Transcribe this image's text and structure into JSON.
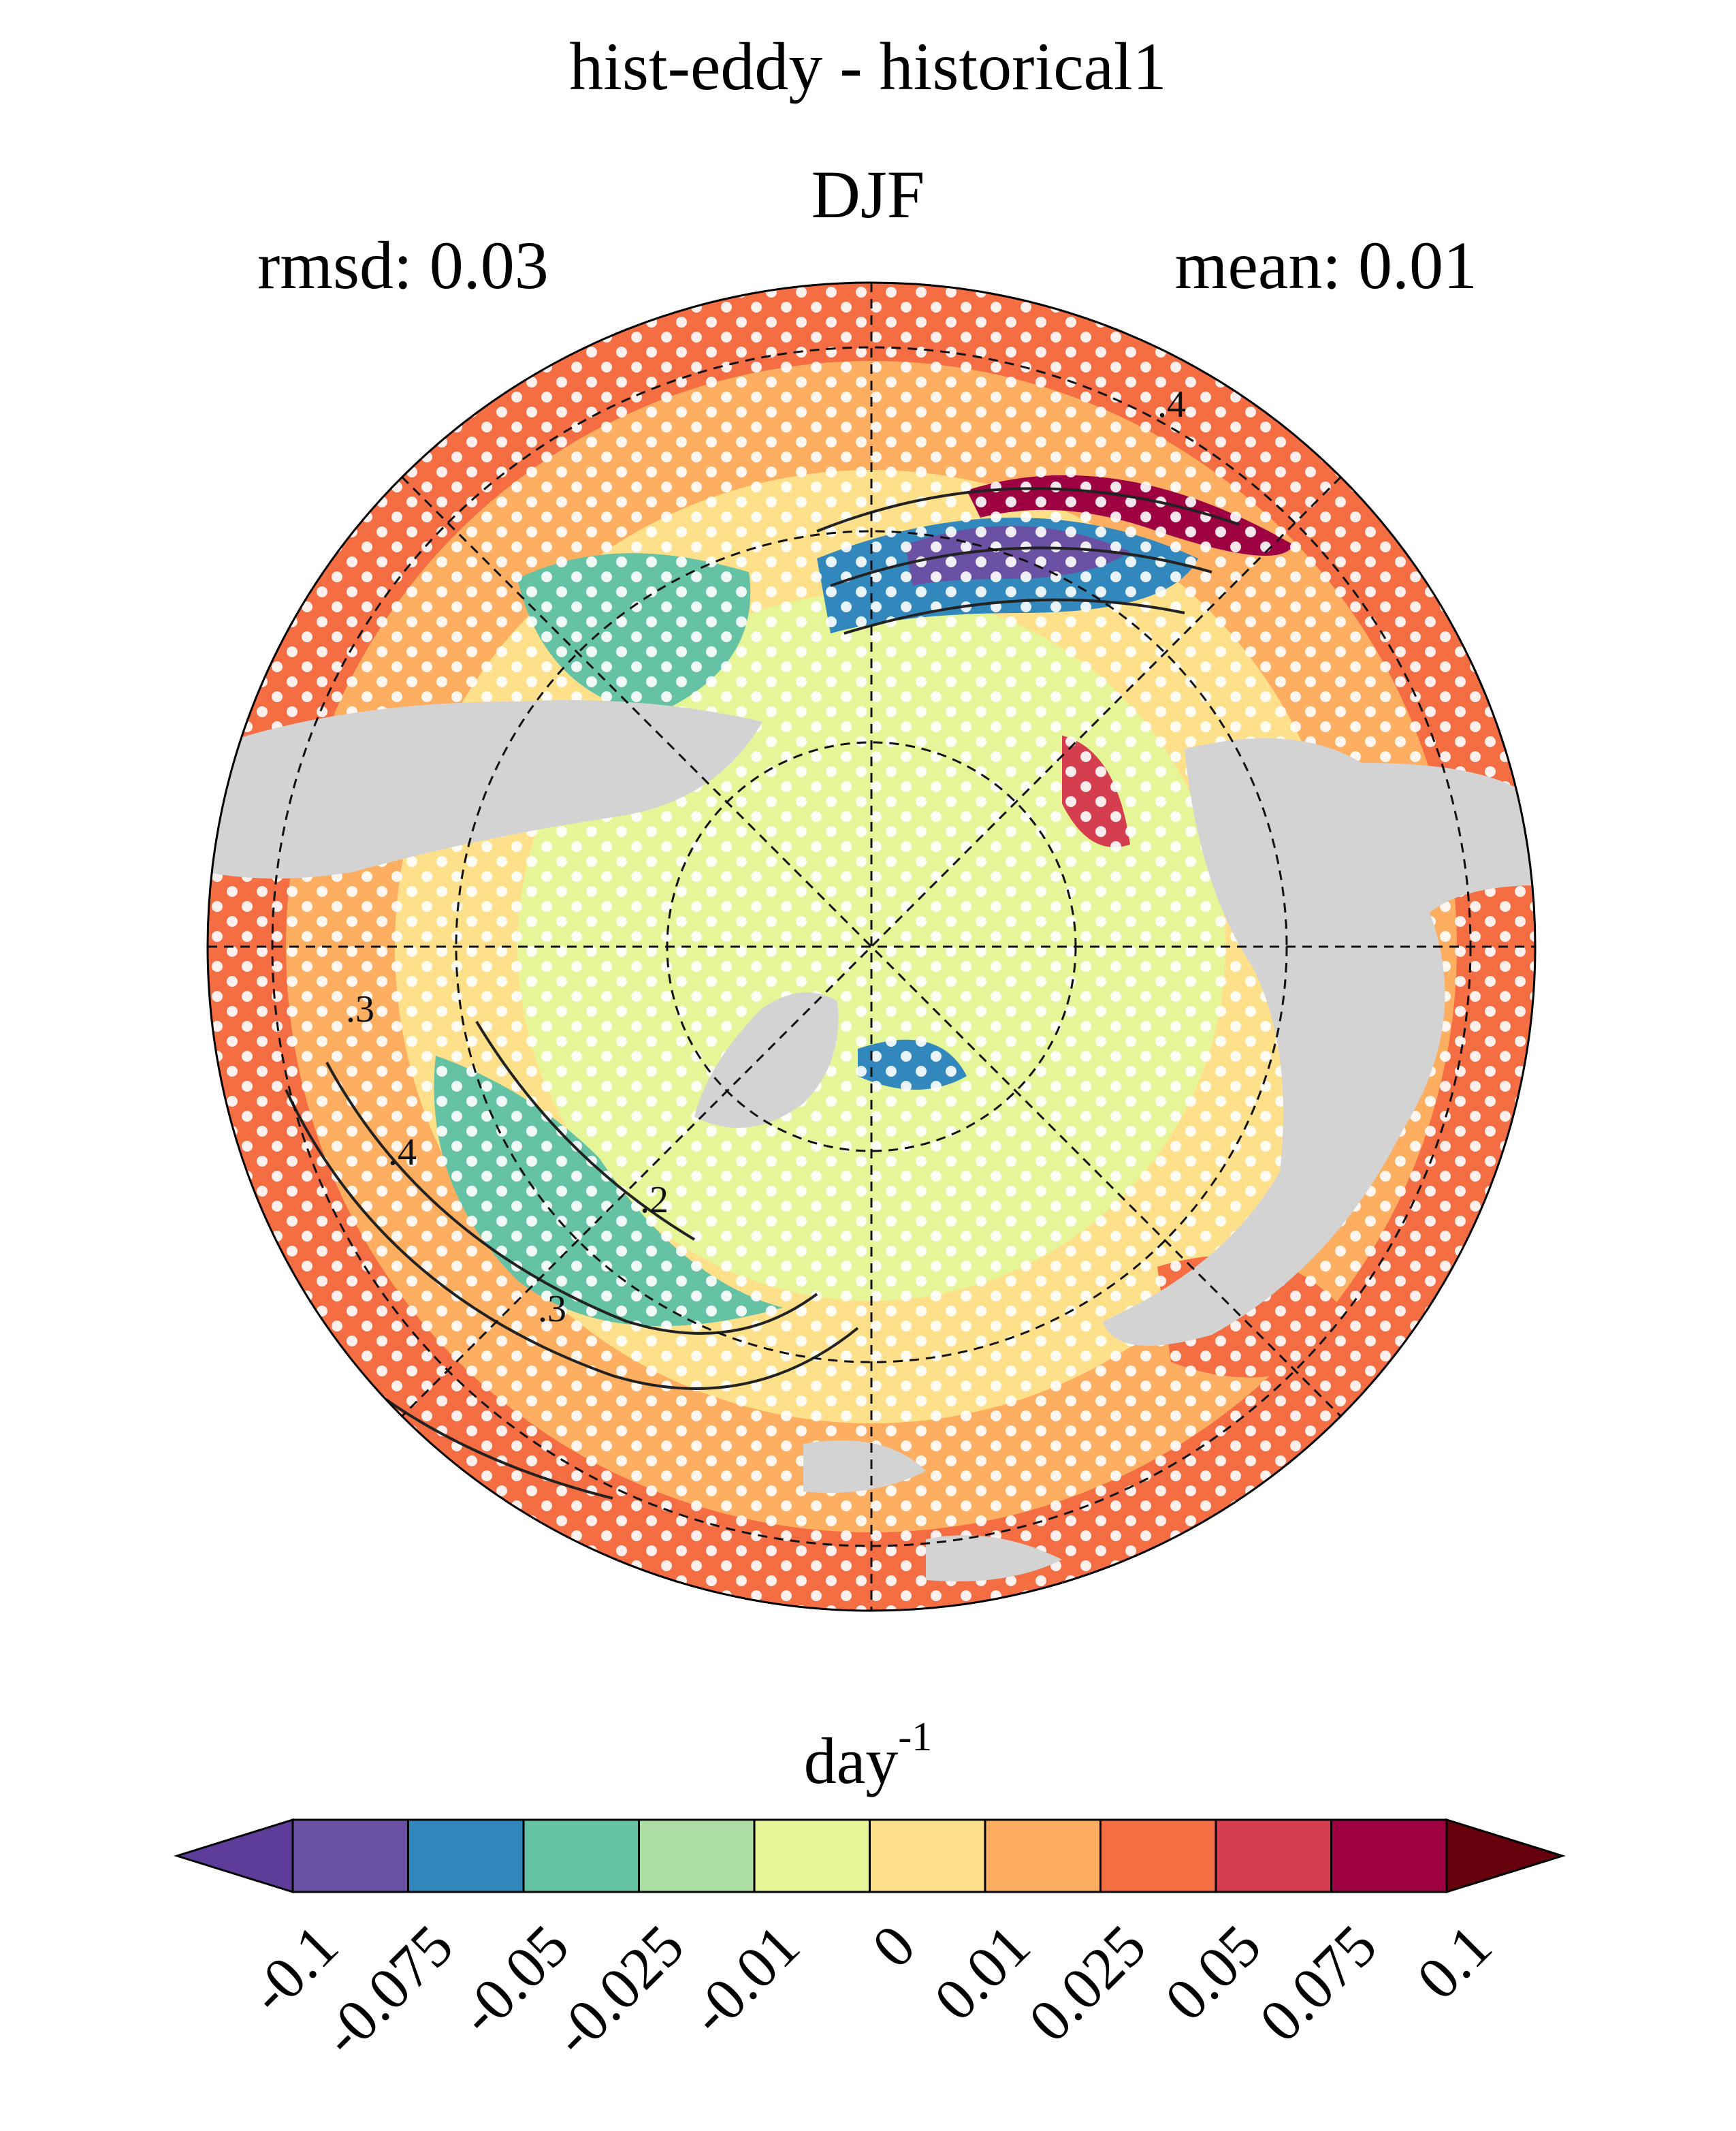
{
  "chart_data": {
    "type": "heatmap",
    "projection": "north-polar-stereographic",
    "title": "hist-eddy - historical1",
    "subtitle": "DJF",
    "stats": {
      "rmsd": "rmsd: 0.03",
      "mean": "mean: 0.01"
    },
    "colorbar": {
      "unit": "day",
      "unit_exponent": "-1",
      "orientation": "horizontal",
      "extend": "both",
      "boundaries": [
        "-0.1",
        "-0.075",
        "-0.05",
        "-0.025",
        "-0.01",
        "0",
        "0.01",
        "0.025",
        "0.05",
        "0.075",
        "0.1"
      ],
      "colors": [
        "#5e3c99",
        "#6a51a3",
        "#3288bd",
        "#66c2a5",
        "#abdda4",
        "#e6f598",
        "#fee08b",
        "#fdae61",
        "#f46d43",
        "#d53e4f",
        "#9e0142",
        "#67000d"
      ]
    },
    "contour_labels": [
      ".4",
      ".3",
      ".4",
      ".2",
      ".3"
    ],
    "land_mask_color": "#d3d3d3",
    "stippling": "significance dots (white)",
    "grid": "dashed lat/lon"
  }
}
